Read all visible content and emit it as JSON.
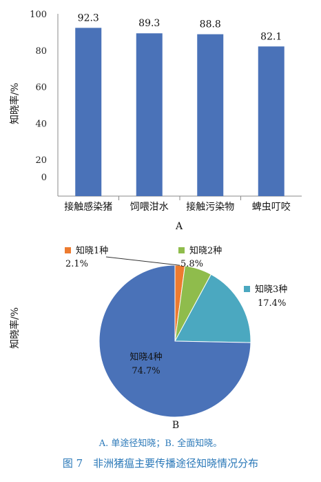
{
  "chart_data": [
    {
      "type": "bar",
      "ylabel": "知晓率/%",
      "categories": [
        "接触感染猪",
        "饲喂泔水",
        "接触污染物",
        "蜱虫叮咬"
      ],
      "values": [
        92.3,
        89.3,
        88.8,
        82.1
      ],
      "value_labels": [
        "92.3",
        "89.3",
        "88.8",
        "82.1"
      ],
      "yticks": [
        "0",
        "20",
        "40",
        "60",
        "80",
        "100"
      ],
      "ylim": [
        0,
        100
      ],
      "panel_label": "A",
      "grid": false,
      "colors": {
        "bar": "#4a72b8"
      }
    },
    {
      "type": "pie",
      "ylabel": "知晓率/%",
      "slices": [
        {
          "name": "知晓1种",
          "value": 2.1,
          "label": "2.1%",
          "color": "#ed7b2f"
        },
        {
          "name": "知晓2种",
          "value": 5.8,
          "label": "5.8%",
          "color": "#8fbc4c"
        },
        {
          "name": "知晓3种",
          "value": 17.4,
          "label": "17.4%",
          "color": "#4ba8c0"
        },
        {
          "name": "知晓4种",
          "value": 74.7,
          "label": "74.7%",
          "color": "#4a72b8"
        }
      ],
      "panel_label": "B"
    }
  ],
  "note": "A. 单途径知晓；B. 全面知晓。",
  "caption": "图 7　非洲猪瘟主要传播途径知晓情况分布"
}
